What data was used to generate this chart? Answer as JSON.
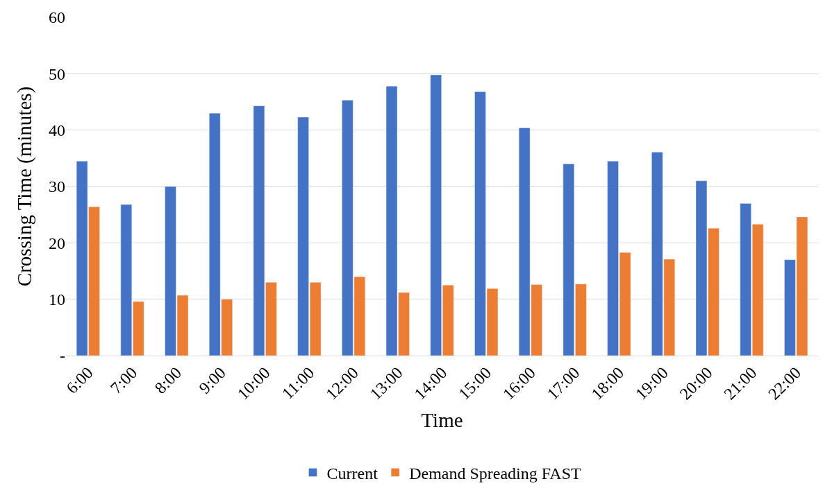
{
  "chart_data": {
    "type": "bar",
    "xlabel": "Time",
    "ylabel": "Crossing Time (minutes)",
    "categories": [
      "6:00",
      "7:00",
      "8:00",
      "9:00",
      "10:00",
      "11:00",
      "12:00",
      "13:00",
      "14:00",
      "15:00",
      "16:00",
      "17:00",
      "18:00",
      "19:00",
      "20:00",
      "21:00",
      "22:00"
    ],
    "series": [
      {
        "name": "Current",
        "color": "#4472c4",
        "values": [
          34.5,
          26.8,
          30,
          43,
          44.3,
          42.3,
          45.3,
          47.8,
          49.8,
          46.8,
          40.4,
          34,
          34.5,
          36.1,
          31,
          27,
          17
        ]
      },
      {
        "name": "Demand Spreading FAST",
        "color": "#ed7d31",
        "values": [
          26.4,
          9.6,
          10.7,
          10,
          13,
          13,
          14,
          11.2,
          12.5,
          11.9,
          12.6,
          12.7,
          18.3,
          17.1,
          22.6,
          23.3,
          24.6
        ]
      }
    ],
    "ylim": [
      0,
      60
    ],
    "yticks": [
      {
        "value": 0,
        "label": "-"
      },
      10,
      20,
      30,
      40,
      50,
      60
    ],
    "grid": "y",
    "legend": "bottom"
  }
}
